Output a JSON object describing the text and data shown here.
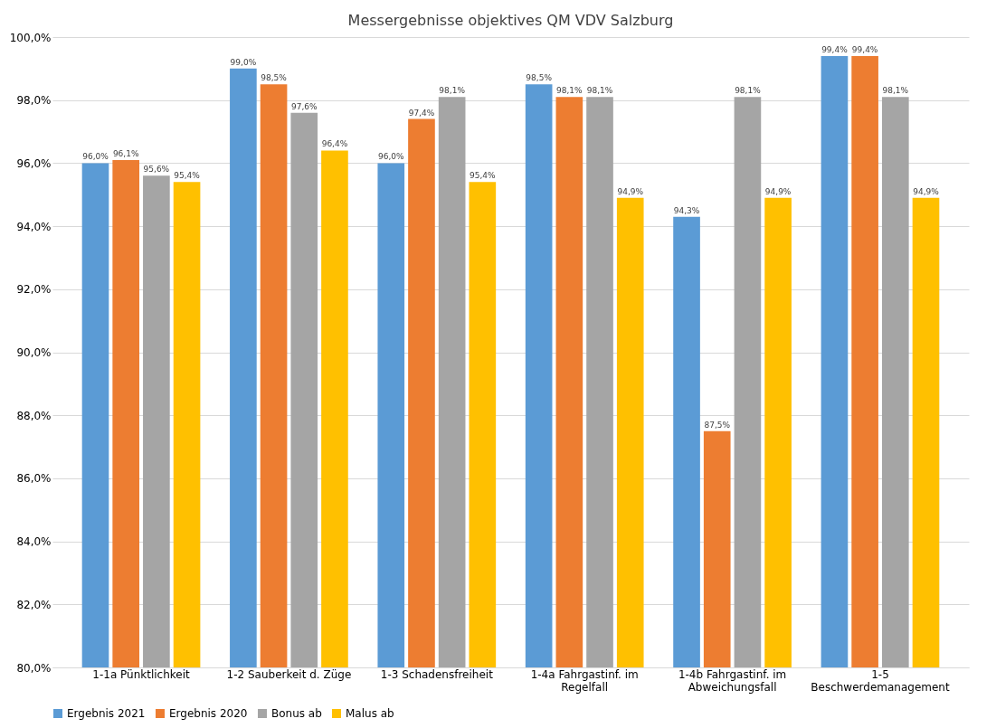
{
  "chart_data": {
    "type": "bar",
    "title": "Messergebnisse objektives QM VDV Salzburg",
    "categories": [
      "1-1a Pünktlichkeit",
      "1-2 Sauberkeit d. Züge",
      "1-3 Schadensfreiheit",
      "1-4a Fahrgastinf. im\nRegelfall",
      "1-4b Fahrgastinf. im\nAbweichungsfall",
      "1-5\nBeschwerdemanagement"
    ],
    "series": [
      {
        "name": "Ergebnis 2021",
        "color": "#5b9bd5",
        "values": [
          96.0,
          99.0,
          96.0,
          98.5,
          94.3,
          99.4
        ],
        "value_labels": [
          "96,0%",
          "99,0%",
          "96,0%",
          "98,5%",
          "94,3%",
          "99,4%"
        ]
      },
      {
        "name": "Ergebnis 2020",
        "color": "#ed7d31",
        "values": [
          96.1,
          98.5,
          97.4,
          98.1,
          87.5,
          99.4
        ],
        "value_labels": [
          "96,1%",
          "98,5%",
          "97,4%",
          "98,1%",
          "87,5%",
          "99,4%"
        ]
      },
      {
        "name": "Bonus ab",
        "color": "#a5a5a5",
        "values": [
          95.6,
          97.6,
          98.1,
          98.1,
          98.1,
          98.1
        ],
        "value_labels": [
          "95,6%",
          "97,6%",
          "98,1%",
          "98,1%",
          "98,1%",
          "98,1%"
        ]
      },
      {
        "name": "Malus ab",
        "color": "#ffc000",
        "values": [
          95.4,
          96.4,
          95.4,
          94.9,
          94.9,
          94.9
        ],
        "value_labels": [
          "95,4%",
          "96,4%",
          "95,4%",
          "94,9%",
          "94,9%",
          "94,9%"
        ]
      }
    ],
    "ylim": [
      80,
      100
    ],
    "yticks": [
      {
        "value": 80,
        "label": "80,0%"
      },
      {
        "value": 82,
        "label": "82,0%"
      },
      {
        "value": 84,
        "label": "84,0%"
      },
      {
        "value": 86,
        "label": "86,0%"
      },
      {
        "value": 88,
        "label": "88,0%"
      },
      {
        "value": 90,
        "label": "90,0%"
      },
      {
        "value": 92,
        "label": "92,0%"
      },
      {
        "value": 94,
        "label": "94,0%"
      },
      {
        "value": 96,
        "label": "96,0%"
      },
      {
        "value": 98,
        "label": "98,0%"
      },
      {
        "value": 100,
        "label": "100,0%"
      }
    ],
    "grid": "y",
    "legend": "bottom"
  }
}
